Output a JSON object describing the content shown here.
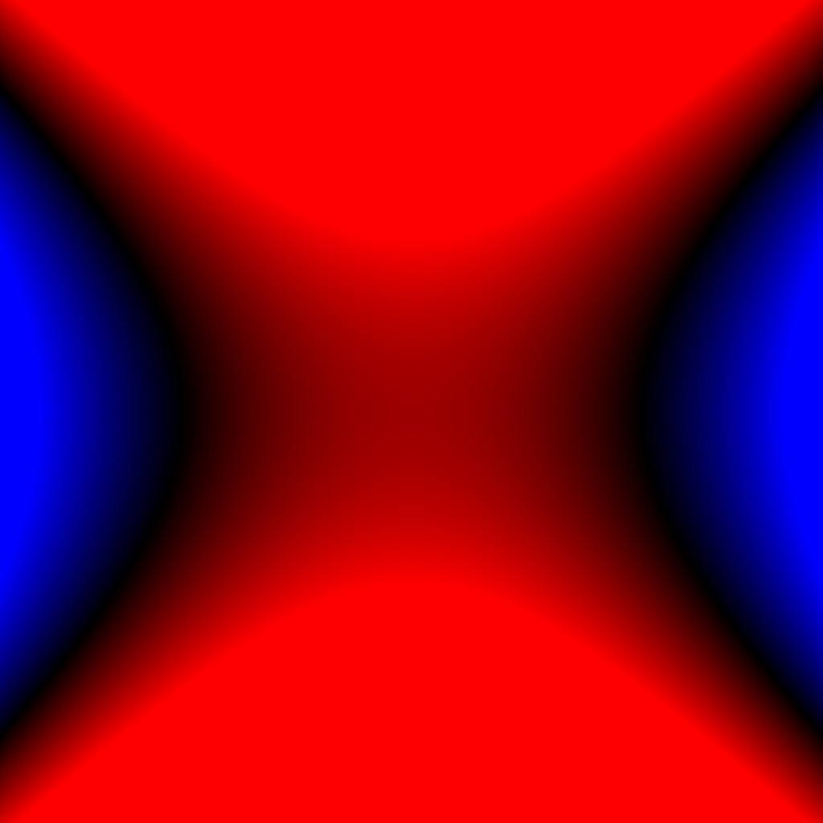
{
  "image": {
    "kind": "abstract-gradient-field",
    "description_visible_text": "",
    "colors": {
      "positive": "#ff0000",
      "zero": "#000000",
      "negative": "#0000ff"
    },
    "bands": [
      {
        "name": "top-red-band",
        "color": "#ff0000"
      },
      {
        "name": "bottom-red-band",
        "color": "#ff0000"
      },
      {
        "name": "left-blue-band",
        "color": "#0000ff"
      },
      {
        "name": "right-blue-band",
        "color": "#0000ff"
      },
      {
        "name": "center-dark-red-region",
        "color": "#8b0000"
      }
    ]
  }
}
